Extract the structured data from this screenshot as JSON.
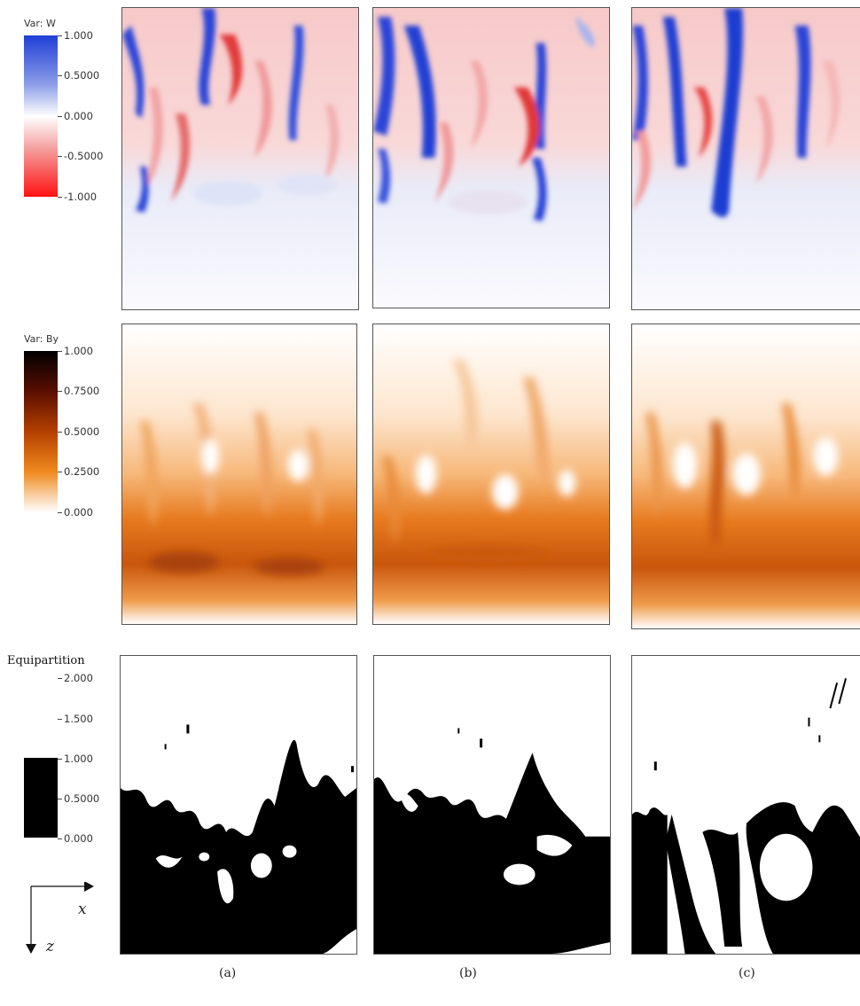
{
  "rows": [
    {
      "id": "w",
      "legend_title": "Var: W",
      "ticks": [
        "1.000",
        "0.5000",
        "0.000",
        "-0.5000",
        "-1.000"
      ],
      "colors": {
        "top": "#1f3fd6",
        "mid": "#ffffff",
        "bottom": "#ff1111"
      }
    },
    {
      "id": "by",
      "legend_title": "Var: By",
      "ticks": [
        "1.000",
        "0.7500",
        "0.5000",
        "0.2500",
        "0.000"
      ],
      "colors": {
        "top": "#000000",
        "mid1": "#5a0e00",
        "mid2": "#b44000",
        "mid3": "#f08a1e",
        "bottom": "#ffffff"
      }
    },
    {
      "id": "eq",
      "legend_title": "Equipartition",
      "ticks": [
        "2.000",
        "1.500",
        "1.000",
        "0.5000",
        "0.000"
      ],
      "colors": {
        "fill": "#000000",
        "bg": "#ffffff"
      }
    }
  ],
  "axes": {
    "x_label": "x",
    "z_label": "z"
  },
  "captions": [
    "(a)",
    "(b)",
    "(c)"
  ]
}
